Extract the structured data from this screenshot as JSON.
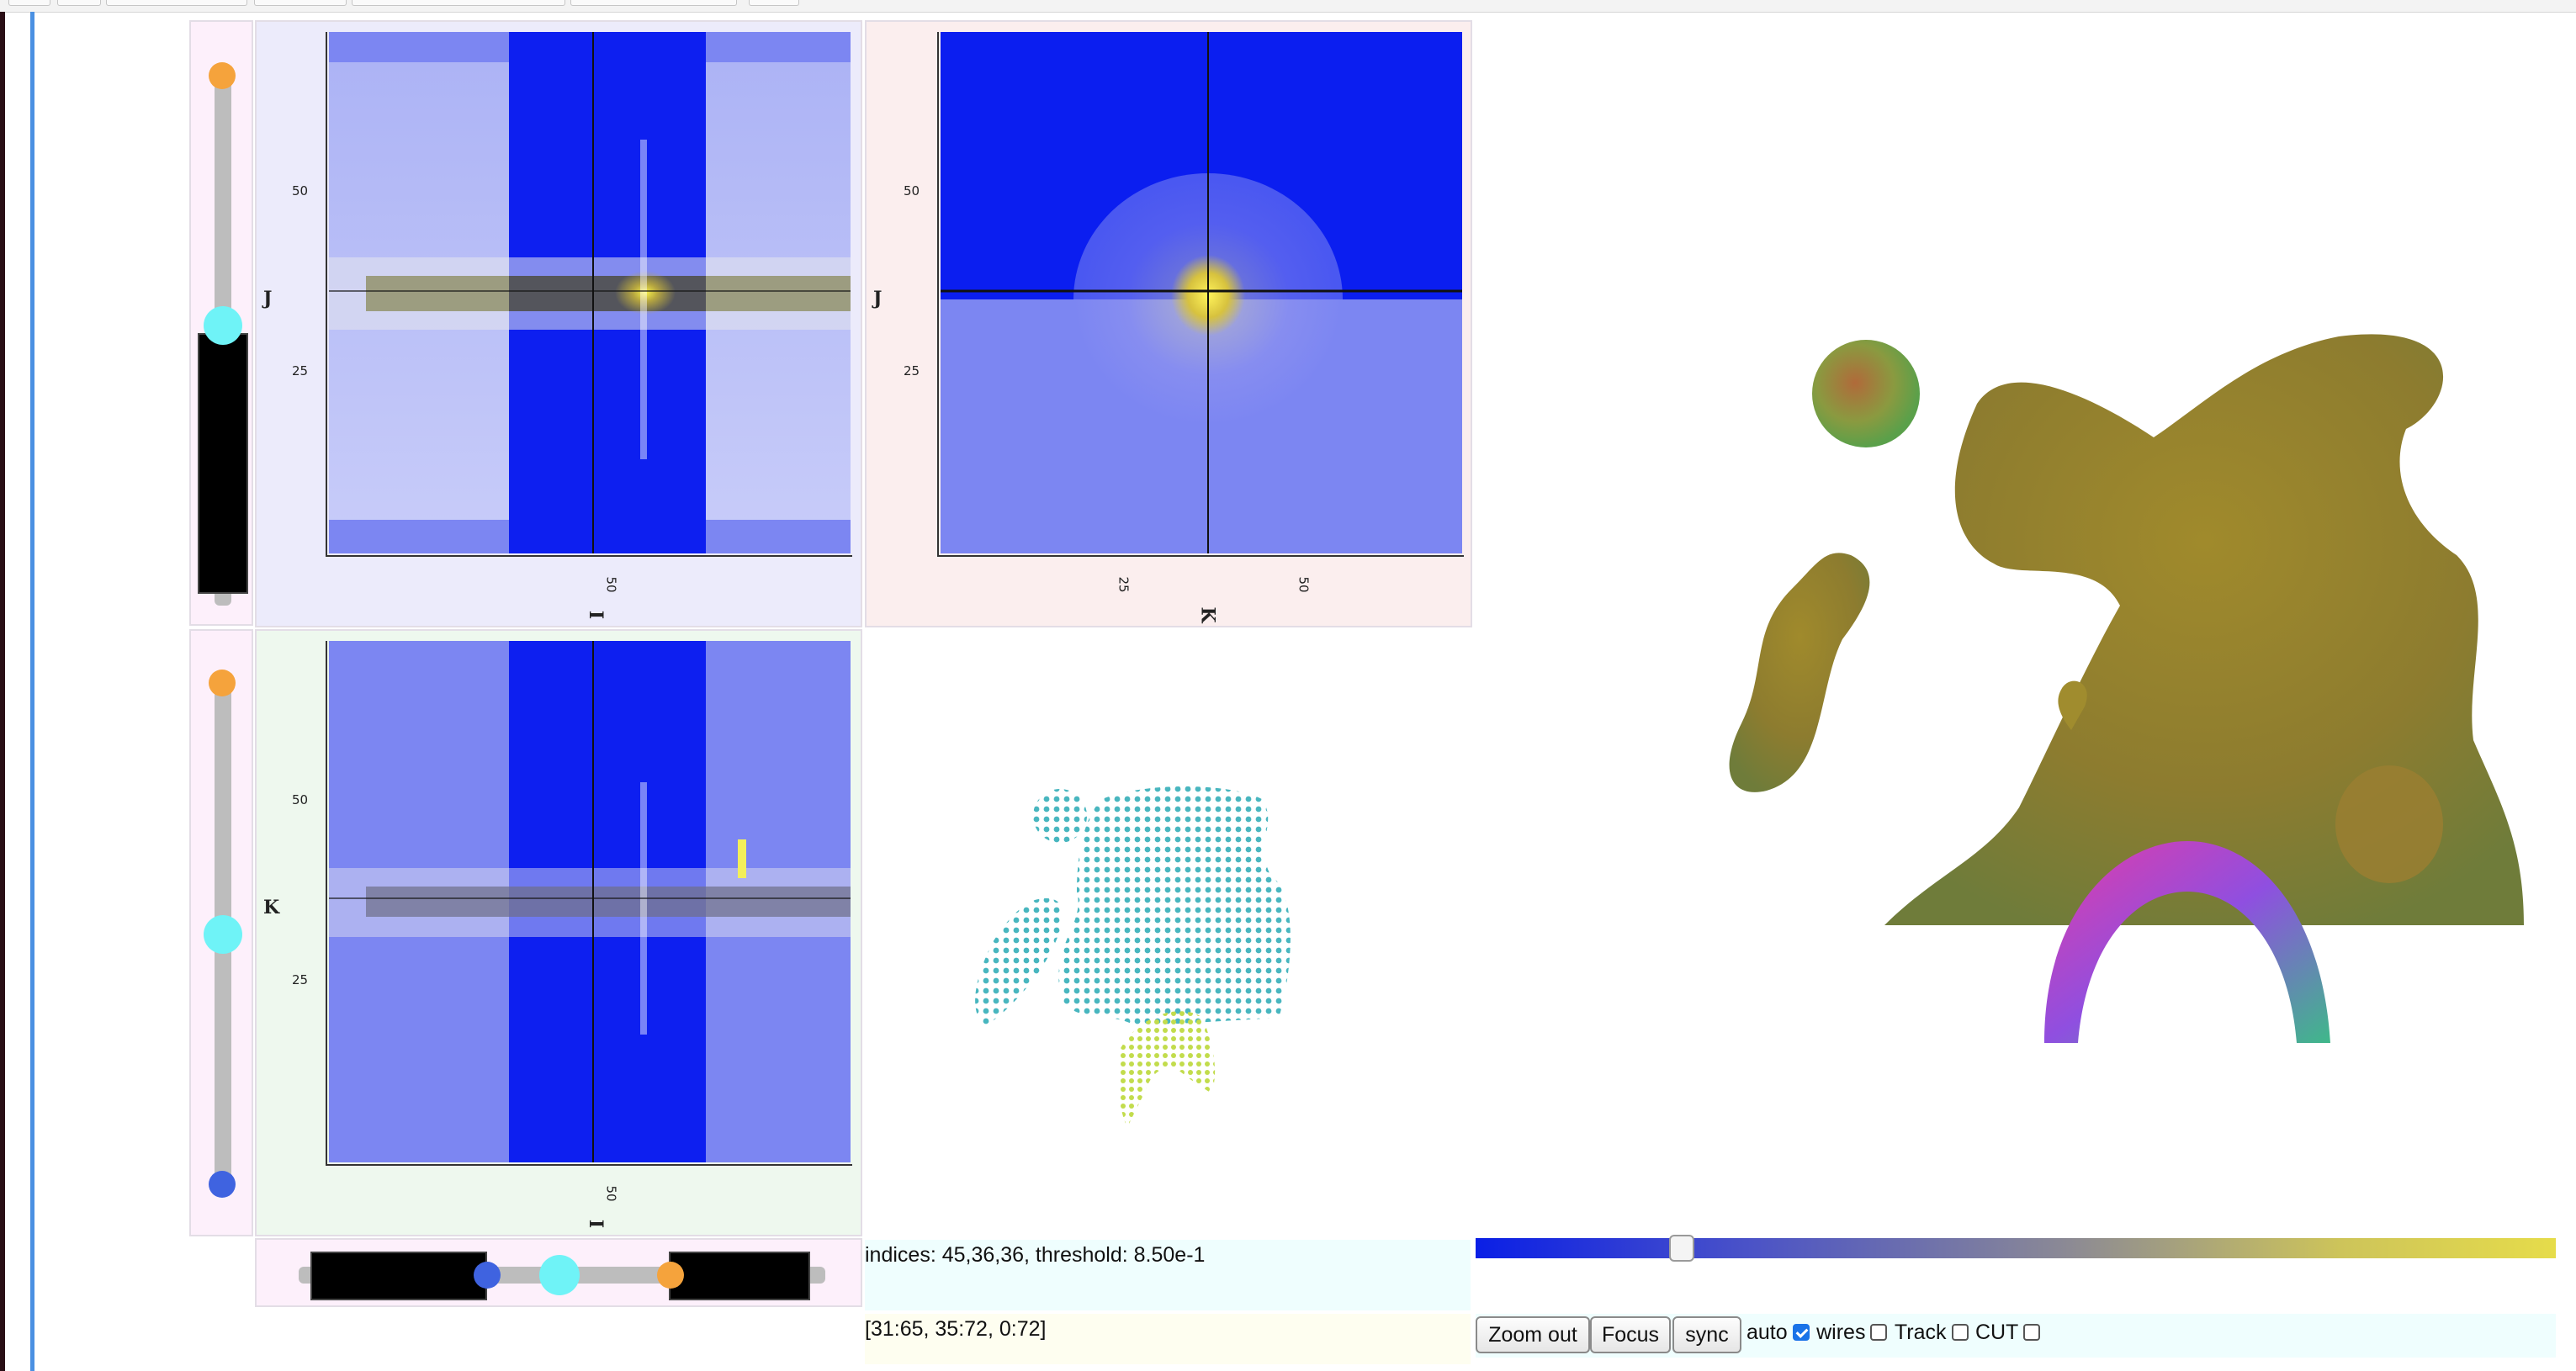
{
  "axes": {
    "ij": {
      "xlabel": "I",
      "ylabel": "J",
      "xticks": [
        "50"
      ],
      "yticks": [
        "50",
        "25"
      ]
    },
    "kj": {
      "xlabel": "K",
      "ylabel": "J",
      "xticks": [
        "25",
        "50"
      ],
      "yticks": [
        "50",
        "25"
      ]
    },
    "ik": {
      "xlabel": "I",
      "ylabel": "K",
      "xticks": [
        "50"
      ],
      "yticks": [
        "50",
        "25"
      ]
    }
  },
  "sliders": {
    "top_vertical": {
      "level": 0.45
    },
    "mid_vertical": {
      "level": 0.5
    },
    "bottom_horizontal": {
      "low": 0.32,
      "high": 0.62,
      "value": 0.45
    }
  },
  "status": {
    "indices_text": "indices: 45,36,36, threshold: 8.50e-1",
    "range_text": "[31:65, 35:72, 0:72]"
  },
  "threshold_bar": {
    "value": 0.19,
    "colors": [
      "#0a1fe6",
      "#e6dc4a"
    ]
  },
  "controls": {
    "zoom_out_label": "Zoom out",
    "focus_label": "Focus",
    "sync_label": "sync",
    "auto_label": "auto",
    "wires_label": "wires",
    "track_label": "Track",
    "cut_label": "CUT",
    "auto_checked": true,
    "wires_checked": false,
    "track_checked": false,
    "cut_checked": false
  },
  "colors": {
    "accent_blue": "#0a1fe6",
    "panel_pink": "#fdf0fb",
    "panel_lav": "#ecebfb",
    "panel_rose": "#fbeeee",
    "panel_green": "#eef8ee",
    "iso_surface": "#8f7c2e"
  }
}
